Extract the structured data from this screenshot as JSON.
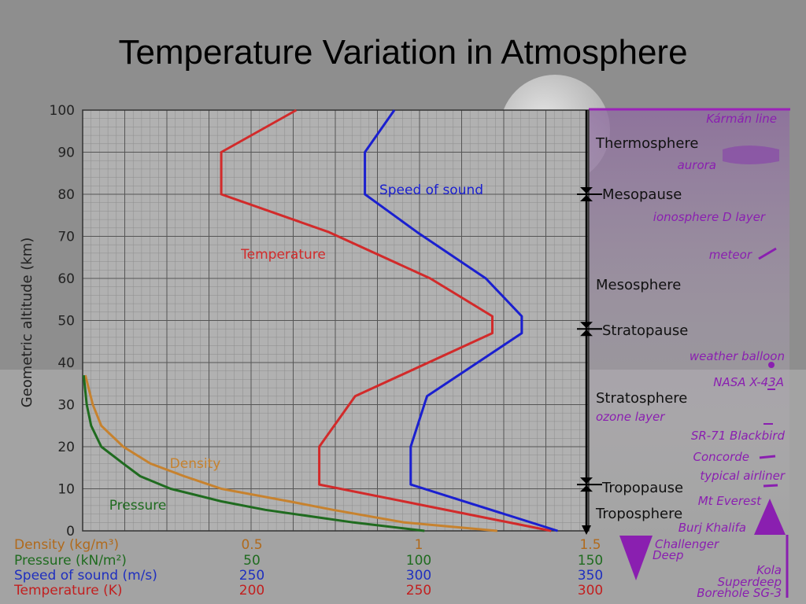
{
  "slide": {
    "title": "Temperature Variation in Atmosphere"
  },
  "chart_data": {
    "type": "line",
    "ylabel": "Geometric altitude (km)",
    "ylim": [
      0,
      100
    ],
    "yticks": [
      "0",
      "10",
      "20",
      "30",
      "40",
      "50",
      "60",
      "70",
      "80",
      "90",
      "100"
    ],
    "x_axes": [
      {
        "name": "Density (kg/m³)",
        "color": "#b06a1c",
        "ticks": [
          "0.5",
          "1",
          "1.5"
        ]
      },
      {
        "name": "Pressure (kN/m²)",
        "color": "#1f6b1f",
        "ticks": [
          "50",
          "100",
          "150"
        ]
      },
      {
        "name": "Speed of sound (m/s)",
        "color": "#1f2fbf",
        "ticks": [
          "250",
          "300",
          "350"
        ]
      },
      {
        "name": "Temperature (K)",
        "color": "#c21f1f",
        "ticks": [
          "200",
          "250",
          "300"
        ]
      }
    ],
    "series": [
      {
        "name": "Temperature",
        "color": "#d22a2a",
        "x_unit": "K",
        "points": [
          [
            288,
            0
          ],
          [
            217,
            11
          ],
          [
            217,
            20
          ],
          [
            228,
            32
          ],
          [
            270,
            47
          ],
          [
            270,
            51
          ],
          [
            251,
            60
          ],
          [
            220,
            71
          ],
          [
            187,
            80
          ],
          [
            187,
            90
          ],
          [
            210,
            100
          ]
        ]
      },
      {
        "name": "Speed of sound",
        "color": "#1a1fd0",
        "x_unit": "m/s",
        "points": [
          [
            340,
            0
          ],
          [
            295,
            11
          ],
          [
            295,
            20
          ],
          [
            300,
            32
          ],
          [
            329,
            47
          ],
          [
            329,
            51
          ],
          [
            318,
            60
          ],
          [
            297,
            71
          ],
          [
            281,
            80
          ],
          [
            281,
            90
          ],
          [
            290,
            100
          ]
        ]
      },
      {
        "name": "Density",
        "color": "#c7822e",
        "x_unit": "kg/m³",
        "points": [
          [
            1.225,
            0
          ],
          [
            0.95,
            2
          ],
          [
            0.74,
            5
          ],
          [
            0.61,
            7
          ],
          [
            0.41,
            10
          ],
          [
            0.3,
            13
          ],
          [
            0.2,
            16
          ],
          [
            0.12,
            20
          ],
          [
            0.055,
            25
          ],
          [
            0.03,
            30
          ],
          [
            0.008,
            37
          ]
        ]
      },
      {
        "name": "Pressure",
        "color": "#1f6b1f",
        "x_unit": "kN/m²",
        "points": [
          [
            101,
            0
          ],
          [
            80,
            2
          ],
          [
            54,
            5
          ],
          [
            41,
            7
          ],
          [
            26,
            10
          ],
          [
            17,
            13
          ],
          [
            12,
            16
          ],
          [
            5.5,
            20
          ],
          [
            2.5,
            25
          ],
          [
            1.2,
            30
          ],
          [
            0.3,
            37
          ]
        ]
      }
    ],
    "layers": [
      {
        "label": "Kármán line",
        "kind": "italic"
      },
      {
        "label": "Thermosphere",
        "kind": "layer"
      },
      {
        "label": "aurora",
        "kind": "italic"
      },
      {
        "label": "Mesopause",
        "kind": "boundary"
      },
      {
        "label": "ionosphere D layer",
        "kind": "italic"
      },
      {
        "label": "meteor",
        "kind": "italic"
      },
      {
        "label": "Mesosphere",
        "kind": "layer"
      },
      {
        "label": "Stratopause",
        "kind": "boundary"
      },
      {
        "label": "weather balloon",
        "kind": "italic"
      },
      {
        "label": "NASA X-43A",
        "kind": "italic"
      },
      {
        "label": "Stratosphere",
        "kind": "layer"
      },
      {
        "label": "ozone layer",
        "kind": "italic"
      },
      {
        "label": "SR-71 Blackbird",
        "kind": "italic"
      },
      {
        "label": "Concorde",
        "kind": "italic"
      },
      {
        "label": "typical airliner",
        "kind": "italic"
      },
      {
        "label": "Tropopause",
        "kind": "boundary"
      },
      {
        "label": "Mt Everest",
        "kind": "italic"
      },
      {
        "label": "Troposphere",
        "kind": "layer"
      },
      {
        "label": "Burj Khalifa",
        "kind": "italic"
      },
      {
        "label": "Challenger",
        "kind": "italic"
      },
      {
        "label": "Deep",
        "kind": "italic"
      },
      {
        "label": "Kola",
        "kind": "italic"
      },
      {
        "label": "Superdeep",
        "kind": "italic"
      },
      {
        "label": "Borehole SG-3",
        "kind": "italic"
      }
    ]
  }
}
